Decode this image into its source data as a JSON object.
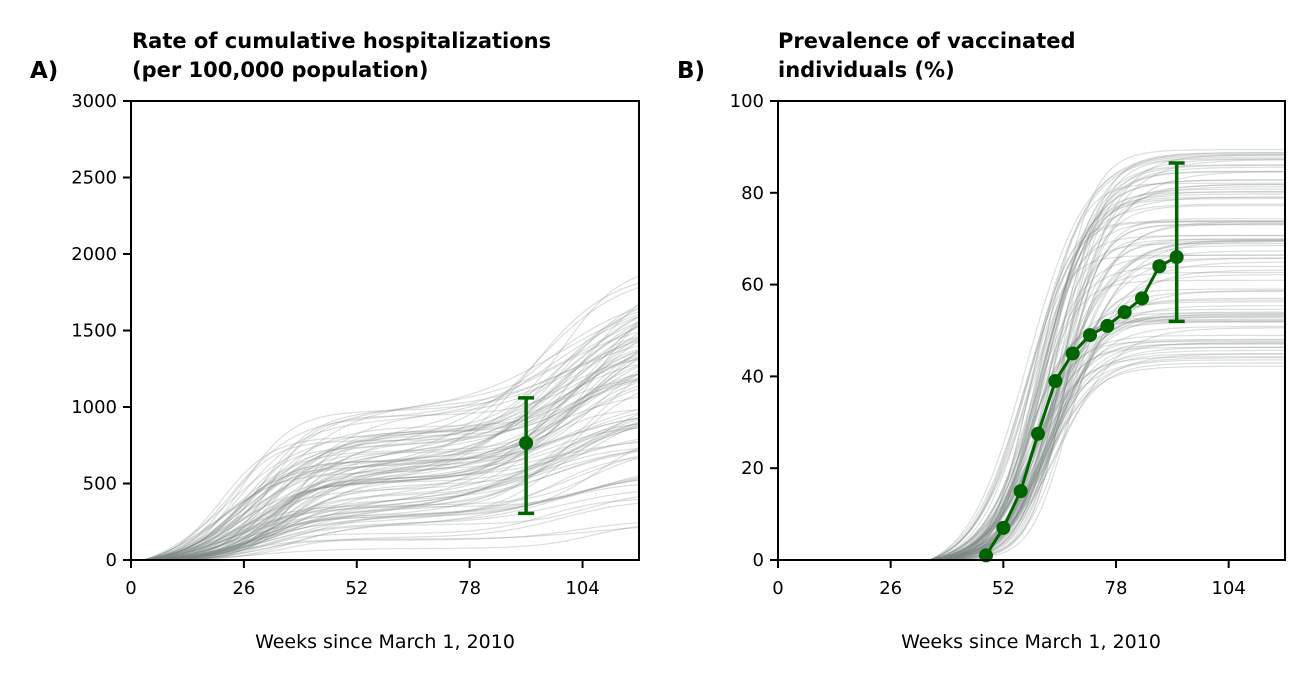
{
  "chart_data": [
    {
      "panel_label": "A)",
      "type": "line",
      "title_lines": [
        "Rate of cumulative hospitalizations",
        "(per 100,000 population)"
      ],
      "xlabel": "Weeks since March 1, 2010",
      "xlim": [
        0,
        117
      ],
      "ylim": [
        0,
        3000
      ],
      "xticks": [
        0,
        26,
        52,
        78,
        104
      ],
      "yticks": [
        0,
        500,
        1000,
        1500,
        2000,
        2500,
        3000
      ],
      "grid": false,
      "trajectory_color": "#7d8a85",
      "observed_color": "#006400",
      "simulated_trajectories": {
        "count": 100,
        "onset_week": 3,
        "end_week": 117,
        "final_value_range": [
          200,
          1940
        ],
        "shape": "cumulative, rising from 0 after week ~3 with a plateau around weeks 40-80 and a second rise after week ~80"
      },
      "observed": {
        "x": [
          91
        ],
        "y": [
          765
        ],
        "error_low": [
          305
        ],
        "error_high": [
          1060
        ]
      }
    },
    {
      "panel_label": "B)",
      "type": "line",
      "title_lines": [
        "Prevalence of vaccinated",
        "individuals (%)"
      ],
      "xlabel": "Weeks since March 1, 2010",
      "xlim": [
        0,
        117
      ],
      "ylim": [
        0,
        100
      ],
      "xticks": [
        0,
        26,
        52,
        78,
        104
      ],
      "yticks": [
        0,
        20,
        40,
        60,
        80,
        100
      ],
      "grid": false,
      "trajectory_color": "#7d8a85",
      "observed_color": "#006400",
      "simulated_trajectories": {
        "count": 100,
        "onset_week": 35,
        "end_week": 117,
        "final_value_range": [
          41,
          90
        ],
        "shape": "sigmoid, rising steeply between weeks ~45 and ~75 then levelling off"
      },
      "observed": {
        "x": [
          48,
          52,
          56,
          60,
          64,
          68,
          72,
          76,
          80,
          84,
          88,
          92
        ],
        "y": [
          1,
          7,
          15,
          27.5,
          39,
          45,
          49,
          51,
          54,
          57,
          64,
          66
        ],
        "errorbar_x": 92,
        "errorbar_low": 52,
        "errorbar_high": 86.5
      }
    }
  ]
}
